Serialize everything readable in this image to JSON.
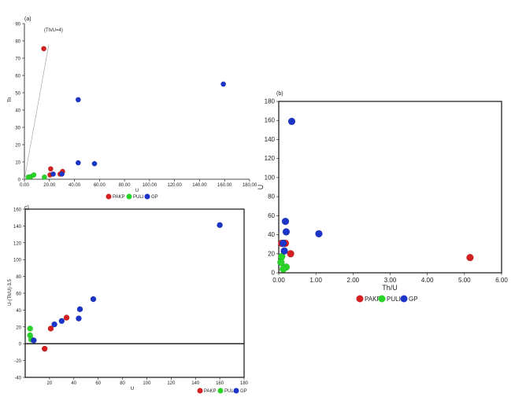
{
  "colors": {
    "PAKP": "#d42020",
    "PULI": "#27d427",
    "GP": "#1a35c8"
  },
  "chart_data": [
    {
      "id": "a",
      "type": "scatter",
      "panel_label": "(a)",
      "xlabel": "U",
      "ylabel": "Th",
      "xlim": [
        0,
        180
      ],
      "ylim": [
        0,
        90
      ],
      "xticks": [
        0,
        20,
        40,
        60,
        80,
        100,
        120,
        140,
        160,
        180
      ],
      "xtick_labels": [
        "0.00",
        "20.00",
        "40.00",
        "60.00",
        "80.00",
        "100.00",
        "120.00",
        "140.00",
        "160.00",
        "180.00"
      ],
      "yticks": [
        0,
        10,
        20,
        30,
        40,
        50,
        60,
        70,
        80,
        90
      ],
      "ytick_labels": [
        "0",
        "10",
        "20",
        "30",
        "40",
        "50",
        "60",
        "70",
        "80",
        "90"
      ],
      "reference_line": {
        "label": "(Th/U=4)",
        "x": [
          0,
          19.5
        ],
        "y": [
          0,
          78
        ]
      },
      "legend": [
        "PAKP",
        "PULI",
        "GP"
      ],
      "series": [
        {
          "name": "PAKP",
          "points": [
            [
              15.5,
              75.5
            ],
            [
              21,
              6
            ],
            [
              30.5,
              4.5
            ],
            [
              20.5,
              2.5
            ],
            [
              28.5,
              3
            ]
          ]
        },
        {
          "name": "PULI",
          "points": [
            [
              3,
              1.2
            ],
            [
              5,
              1.5
            ],
            [
              7.5,
              2.5
            ],
            [
              16,
              1.2
            ]
          ]
        },
        {
          "name": "GP",
          "points": [
            [
              43,
              46
            ],
            [
              159,
              55
            ],
            [
              43,
              9.5
            ],
            [
              56,
              9
            ],
            [
              23,
              3
            ],
            [
              30,
              3
            ]
          ]
        }
      ]
    },
    {
      "id": "b",
      "type": "scatter",
      "panel_label": "(b)",
      "xlabel": "Th/U",
      "ylabel": "U",
      "xlim": [
        0,
        6
      ],
      "ylim": [
        0,
        180
      ],
      "xticks": [
        0,
        1,
        2,
        3,
        4,
        5,
        6
      ],
      "xtick_labels": [
        "0.00",
        "1.00",
        "2.00",
        "3.00",
        "4.00",
        "5.00",
        "6.00"
      ],
      "yticks": [
        0,
        20,
        40,
        60,
        80,
        100,
        120,
        140,
        160,
        180
      ],
      "ytick_labels": [
        "0",
        "20",
        "40",
        "60",
        "80",
        "100",
        "120",
        "140",
        "160",
        "180"
      ],
      "legend": [
        "PAKP",
        "PULI",
        "GP"
      ],
      "series": [
        {
          "name": "PAKP",
          "points": [
            [
              5.15,
              16
            ],
            [
              0.32,
              20
            ],
            [
              0.18,
              31
            ],
            [
              0.08,
              31
            ]
          ]
        },
        {
          "name": "PULI",
          "points": [
            [
              0.08,
              17
            ],
            [
              0.06,
              11
            ],
            [
              0.2,
              6
            ],
            [
              0.12,
              4
            ]
          ]
        },
        {
          "name": "GP",
          "points": [
            [
              0.35,
              159
            ],
            [
              1.08,
              41
            ],
            [
              0.18,
              54
            ],
            [
              0.2,
              43
            ],
            [
              0.15,
              23
            ],
            [
              0.12,
              31
            ]
          ]
        }
      ]
    },
    {
      "id": "c",
      "type": "scatter",
      "panel_label": "c)",
      "xlabel": "U",
      "ylabel": "U-(Th/U)-3.5",
      "xlim": [
        0,
        180
      ],
      "ylim": [
        -40,
        160
      ],
      "xticks": [
        20,
        40,
        60,
        80,
        100,
        120,
        140,
        160,
        180
      ],
      "xtick_labels": [
        "20",
        "40",
        "60",
        "80",
        "100",
        "120",
        "140",
        "160",
        "180"
      ],
      "yticks": [
        -40,
        -20,
        0,
        20,
        40,
        60,
        80,
        100,
        120,
        140,
        160
      ],
      "ytick_labels": [
        "-40",
        "-20",
        "0",
        "20",
        "40",
        "60",
        "80",
        "100",
        "120",
        "140",
        "160"
      ],
      "zero_line": true,
      "legend": [
        "PAKP",
        "PULI",
        "GP"
      ],
      "series": [
        {
          "name": "PAKP",
          "points": [
            [
              16,
              -6
            ],
            [
              21,
              18
            ],
            [
              34,
              31
            ]
          ]
        },
        {
          "name": "PULI",
          "points": [
            [
              4,
              18
            ],
            [
              4,
              10
            ],
            [
              5,
              5
            ]
          ]
        },
        {
          "name": "GP",
          "points": [
            [
              160,
              141
            ],
            [
              56,
              53
            ],
            [
              45,
              41
            ],
            [
              44,
              30
            ],
            [
              30,
              27
            ],
            [
              24,
              23
            ],
            [
              7,
              4
            ]
          ]
        }
      ]
    }
  ]
}
